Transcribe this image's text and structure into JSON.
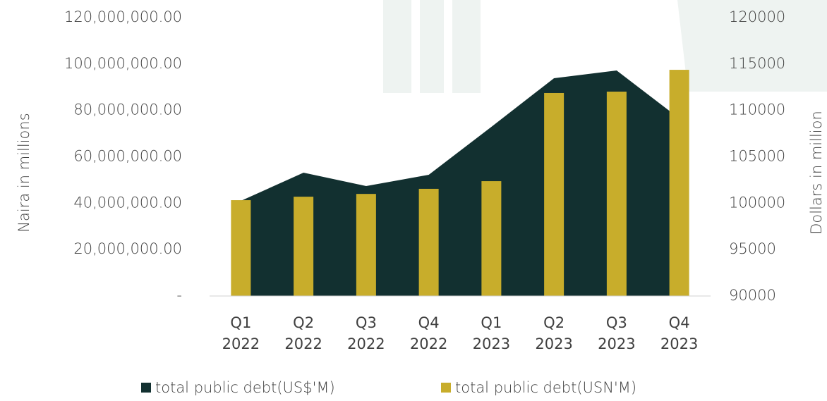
{
  "chart_data": {
    "type": "bar-area",
    "y_label": "Naira in millions",
    "y2_label": "Dollars in million",
    "categories": [
      "Q1 2022",
      "Q2 2022",
      "Q3 2022",
      "Q4 2022",
      "Q1 2023",
      "Q2 2023",
      "Q3 2023",
      "Q4 2023"
    ],
    "series": [
      {
        "name": "total public debt(US$'M)",
        "type": "area",
        "axis": "y2",
        "color": "#123030",
        "values": [
          100250,
          103290,
          101850,
          103060,
          108230,
          113470,
          114300,
          109140
        ]
      },
      {
        "name": "total public debt(USN'M)",
        "type": "bar",
        "axis": "y",
        "color": "#c8ad2b",
        "values": [
          41300000,
          42800000,
          44000000,
          46200000,
          49500000,
          87500000,
          88100000,
          97500000
        ]
      }
    ],
    "ylim": [
      0,
      120000000
    ],
    "yticks": [
      {
        "value": 0,
        "label": "-"
      },
      {
        "value": 20000000,
        "label": "20,000,000.00"
      },
      {
        "value": 40000000,
        "label": "40,000,000.00"
      },
      {
        "value": 60000000,
        "label": "60,000,000.00"
      },
      {
        "value": 80000000,
        "label": "80,000,000.00"
      },
      {
        "value": 100000000,
        "label": "100,000,000.00"
      },
      {
        "value": 120000000,
        "label": "120,000,000.00"
      }
    ],
    "y2lim": [
      90000,
      120000
    ],
    "y2ticks": [
      90000,
      95000,
      100000,
      105000,
      110000,
      115000,
      120000
    ],
    "legend": "bottom"
  }
}
